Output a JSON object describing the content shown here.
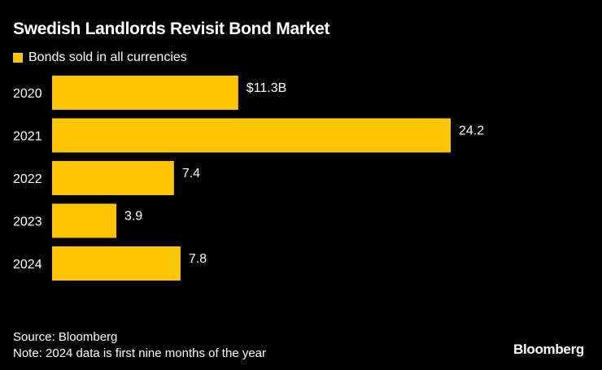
{
  "title": "Swedish Landlords Revisit Bond Market",
  "chart_data": {
    "type": "bar",
    "orientation": "horizontal",
    "categories": [
      "2020",
      "2021",
      "2022",
      "2023",
      "2024"
    ],
    "series": [
      {
        "name": "Bonds sold in all currencies",
        "values": [
          11.3,
          24.2,
          7.4,
          3.9,
          7.8
        ],
        "color": "#FFC500"
      }
    ],
    "data_labels": [
      "$11.3B",
      "24.2",
      "7.4",
      "3.9",
      "7.8"
    ],
    "title": "Swedish Landlords Revisit Bond Market",
    "xlim": [
      0,
      24.2
    ],
    "grid": false,
    "legend": "top-left"
  },
  "footer": {
    "source": "Source: Bloomberg",
    "note": "Note: 2024 data is first nine months of the year"
  },
  "brand": "Bloomberg",
  "colors": {
    "background": "#000000",
    "bar": "#FFC500",
    "text": "#FFFFFF"
  }
}
